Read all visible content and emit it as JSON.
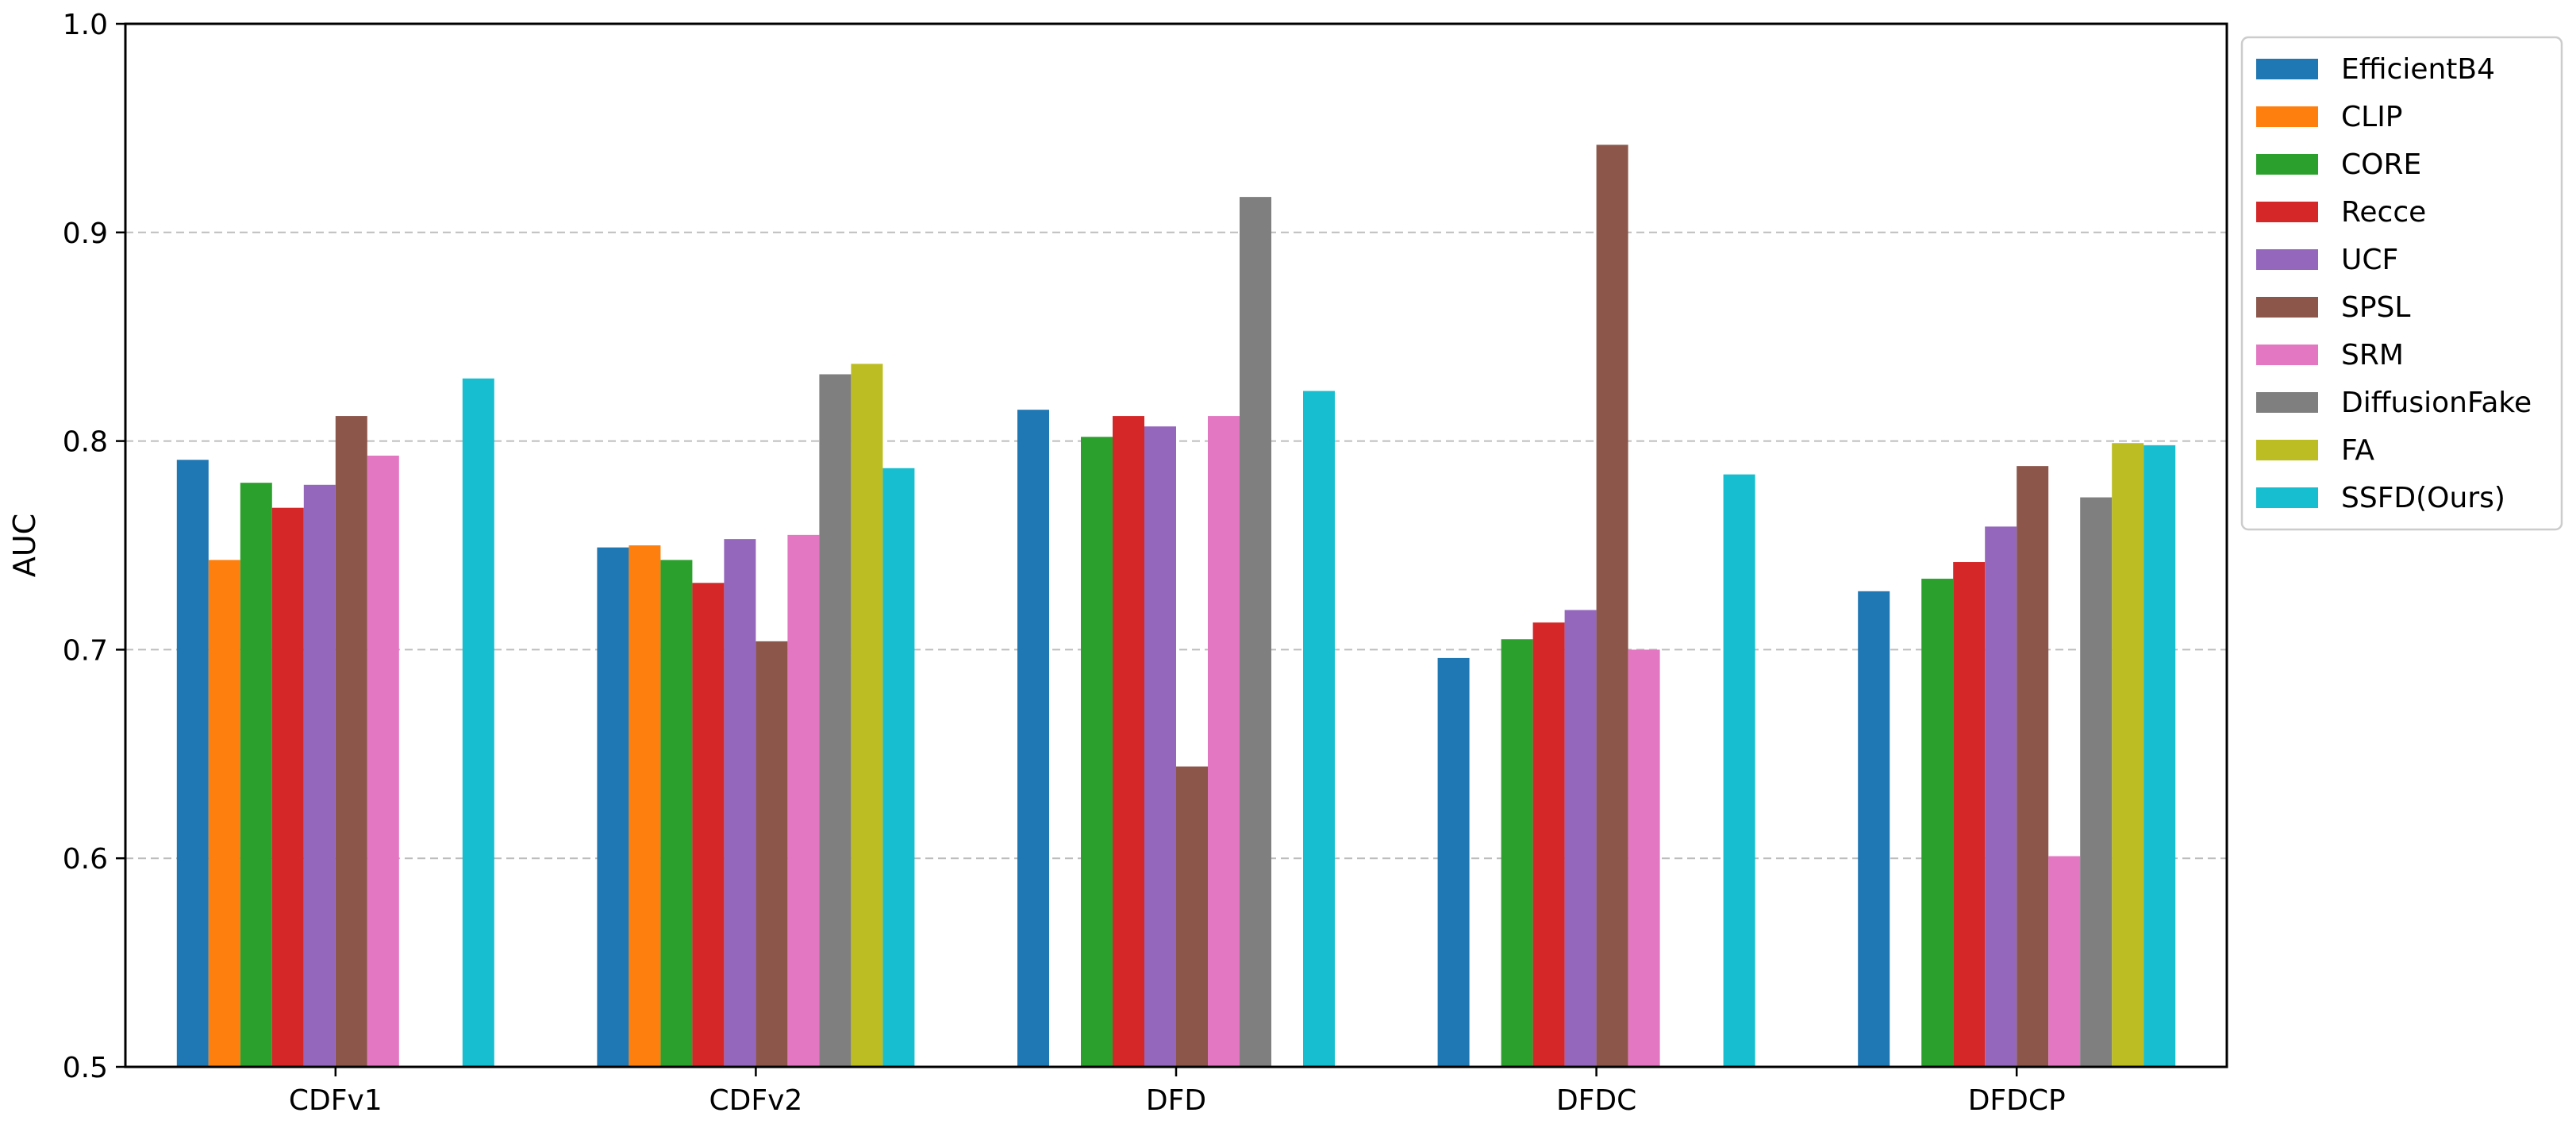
{
  "chart_data": {
    "type": "bar",
    "title": "",
    "xlabel": "",
    "ylabel": "AUC",
    "ylim": [
      0.5,
      1.0
    ],
    "yticks": [
      "0.5",
      "0.6",
      "0.7",
      "0.8",
      "0.9",
      "1.0"
    ],
    "grid": "y-dashed",
    "legend_position": "outside-right-top",
    "categories": [
      "CDFv1",
      "CDFv2",
      "DFD",
      "DFDC",
      "DFDCP"
    ],
    "series": [
      {
        "name": "EfficientB4",
        "color": "#1f77b4",
        "values": [
          0.791,
          0.749,
          0.815,
          0.696,
          0.728
        ]
      },
      {
        "name": "CLIP",
        "color": "#ff7f0e",
        "values": [
          0.743,
          0.75,
          null,
          null,
          null
        ]
      },
      {
        "name": "CORE",
        "color": "#2ca02c",
        "values": [
          0.78,
          0.743,
          0.802,
          0.705,
          0.734
        ]
      },
      {
        "name": "Recce",
        "color": "#d62728",
        "values": [
          0.768,
          0.732,
          0.812,
          0.713,
          0.742
        ]
      },
      {
        "name": "UCF",
        "color": "#9467bd",
        "values": [
          0.779,
          0.753,
          0.807,
          0.719,
          0.759
        ]
      },
      {
        "name": "SPSL",
        "color": "#8c564b",
        "values": [
          0.812,
          0.704,
          0.644,
          0.942,
          0.788
        ]
      },
      {
        "name": "SRM",
        "color": "#e377c2",
        "values": [
          0.793,
          0.755,
          0.812,
          0.7,
          0.601
        ]
      },
      {
        "name": "DiffusionFake",
        "color": "#7f7f7f",
        "values": [
          null,
          0.832,
          0.917,
          null,
          0.773
        ]
      },
      {
        "name": "FA",
        "color": "#bcbd22",
        "values": [
          null,
          0.837,
          null,
          null,
          0.799
        ]
      },
      {
        "name": "SSFD(Ours)",
        "color": "#17becf",
        "values": [
          0.83,
          0.787,
          0.824,
          0.784,
          0.798
        ]
      }
    ]
  }
}
